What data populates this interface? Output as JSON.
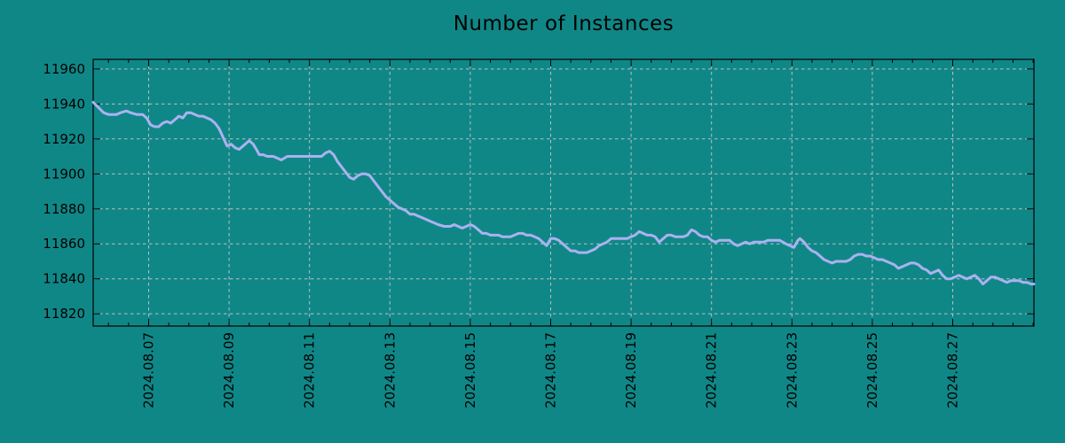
{
  "page": {
    "background_color": "#108787"
  },
  "chart_data": {
    "type": "line",
    "title": "Number of Instances",
    "xlabel": "",
    "ylabel": "",
    "legend": "none",
    "grid": true,
    "x_axis": {
      "tick_days": [
        7,
        9,
        11,
        13,
        15,
        17,
        19,
        21,
        23,
        25,
        27
      ],
      "tick_labels": [
        "2024.08.07",
        "2024.08.09",
        "2024.08.11",
        "2024.08.13",
        "2024.08.15",
        "2024.08.17",
        "2024.08.19",
        "2024.08.21",
        "2024.08.23",
        "2024.08.25",
        "2024.08.27"
      ],
      "minor_tick_step_days": 0.5,
      "xlim_days": [
        5.62,
        29.02
      ]
    },
    "y_axis": {
      "ticks": [
        11820,
        11840,
        11860,
        11880,
        11900,
        11920,
        11940,
        11960
      ],
      "ylim": [
        11813,
        11965.5
      ]
    },
    "colors": {
      "background": "#108787",
      "line": "#aab2f0",
      "grid": "#b8c2c0",
      "axis": "#000000",
      "text": "#000000"
    },
    "series": [
      {
        "name": "instances",
        "points": [
          [
            5.62,
            11941
          ],
          [
            5.75,
            11938
          ],
          [
            5.88,
            11935
          ],
          [
            6.0,
            11934
          ],
          [
            6.1,
            11934
          ],
          [
            6.2,
            11934
          ],
          [
            6.3,
            11935
          ],
          [
            6.45,
            11936
          ],
          [
            6.55,
            11935
          ],
          [
            6.7,
            11934
          ],
          [
            6.85,
            11934
          ],
          [
            6.95,
            11932
          ],
          [
            7.05,
            11928
          ],
          [
            7.15,
            11927
          ],
          [
            7.25,
            11927
          ],
          [
            7.35,
            11929
          ],
          [
            7.45,
            11930
          ],
          [
            7.55,
            11929
          ],
          [
            7.65,
            11931
          ],
          [
            7.75,
            11933
          ],
          [
            7.85,
            11932
          ],
          [
            7.95,
            11935
          ],
          [
            8.05,
            11935
          ],
          [
            8.15,
            11934
          ],
          [
            8.25,
            11933
          ],
          [
            8.35,
            11933
          ],
          [
            8.45,
            11932
          ],
          [
            8.55,
            11931
          ],
          [
            8.65,
            11929
          ],
          [
            8.75,
            11926
          ],
          [
            8.85,
            11921
          ],
          [
            8.95,
            11916
          ],
          [
            9.05,
            11917
          ],
          [
            9.15,
            11915
          ],
          [
            9.25,
            11914
          ],
          [
            9.35,
            11916
          ],
          [
            9.45,
            11918
          ],
          [
            9.5,
            11919
          ],
          [
            9.6,
            11917
          ],
          [
            9.68,
            11914
          ],
          [
            9.75,
            11911
          ],
          [
            9.85,
            11911
          ],
          [
            9.95,
            11910
          ],
          [
            10.1,
            11910
          ],
          [
            10.2,
            11909
          ],
          [
            10.3,
            11908
          ],
          [
            10.45,
            11910
          ],
          [
            10.55,
            11910
          ],
          [
            10.7,
            11910
          ],
          [
            10.85,
            11910
          ],
          [
            11.0,
            11910
          ],
          [
            11.1,
            11910
          ],
          [
            11.2,
            11910
          ],
          [
            11.3,
            11910
          ],
          [
            11.4,
            11912
          ],
          [
            11.5,
            11913
          ],
          [
            11.6,
            11911
          ],
          [
            11.7,
            11907
          ],
          [
            11.8,
            11904
          ],
          [
            11.9,
            11901
          ],
          [
            12.0,
            11898
          ],
          [
            12.1,
            11897
          ],
          [
            12.2,
            11899
          ],
          [
            12.3,
            11900
          ],
          [
            12.4,
            11900
          ],
          [
            12.5,
            11899
          ],
          [
            12.6,
            11896
          ],
          [
            12.7,
            11893
          ],
          [
            12.8,
            11890
          ],
          [
            12.9,
            11887
          ],
          [
            13.0,
            11885
          ],
          [
            13.1,
            11883
          ],
          [
            13.2,
            11881
          ],
          [
            13.3,
            11880
          ],
          [
            13.4,
            11879
          ],
          [
            13.5,
            11877
          ],
          [
            13.6,
            11877
          ],
          [
            13.7,
            11876
          ],
          [
            13.8,
            11875
          ],
          [
            13.9,
            11874
          ],
          [
            14.0,
            11873
          ],
          [
            14.1,
            11872
          ],
          [
            14.2,
            11871
          ],
          [
            14.35,
            11870
          ],
          [
            14.5,
            11870
          ],
          [
            14.6,
            11871
          ],
          [
            14.7,
            11870
          ],
          [
            14.8,
            11869
          ],
          [
            14.9,
            11870
          ],
          [
            15.0,
            11871
          ],
          [
            15.1,
            11870
          ],
          [
            15.2,
            11868
          ],
          [
            15.3,
            11866
          ],
          [
            15.4,
            11866
          ],
          [
            15.5,
            11865
          ],
          [
            15.6,
            11865
          ],
          [
            15.7,
            11865
          ],
          [
            15.8,
            11864
          ],
          [
            15.9,
            11864
          ],
          [
            16.0,
            11864
          ],
          [
            16.1,
            11865
          ],
          [
            16.2,
            11866
          ],
          [
            16.3,
            11866
          ],
          [
            16.4,
            11865
          ],
          [
            16.5,
            11865
          ],
          [
            16.6,
            11864
          ],
          [
            16.7,
            11863
          ],
          [
            16.8,
            11861
          ],
          [
            16.9,
            11859
          ],
          [
            17.0,
            11863
          ],
          [
            17.1,
            11863
          ],
          [
            17.2,
            11862
          ],
          [
            17.3,
            11860
          ],
          [
            17.4,
            11858
          ],
          [
            17.5,
            11856
          ],
          [
            17.6,
            11856
          ],
          [
            17.7,
            11855
          ],
          [
            17.8,
            11855
          ],
          [
            17.9,
            11855
          ],
          [
            18.0,
            11856
          ],
          [
            18.1,
            11857
          ],
          [
            18.2,
            11859
          ],
          [
            18.3,
            11860
          ],
          [
            18.4,
            11861
          ],
          [
            18.5,
            11863
          ],
          [
            18.6,
            11863
          ],
          [
            18.7,
            11863
          ],
          [
            18.8,
            11863
          ],
          [
            18.9,
            11863
          ],
          [
            19.0,
            11864
          ],
          [
            19.1,
            11865
          ],
          [
            19.2,
            11867
          ],
          [
            19.3,
            11866
          ],
          [
            19.4,
            11865
          ],
          [
            19.5,
            11865
          ],
          [
            19.6,
            11864
          ],
          [
            19.7,
            11861
          ],
          [
            19.8,
            11863
          ],
          [
            19.9,
            11865
          ],
          [
            20.0,
            11865
          ],
          [
            20.1,
            11864
          ],
          [
            20.2,
            11864
          ],
          [
            20.3,
            11864
          ],
          [
            20.4,
            11865
          ],
          [
            20.5,
            11868
          ],
          [
            20.6,
            11867
          ],
          [
            20.7,
            11865
          ],
          [
            20.8,
            11864
          ],
          [
            20.9,
            11864
          ],
          [
            21.0,
            11862
          ],
          [
            21.1,
            11861
          ],
          [
            21.2,
            11862
          ],
          [
            21.3,
            11862
          ],
          [
            21.45,
            11862
          ],
          [
            21.55,
            11860
          ],
          [
            21.65,
            11859
          ],
          [
            21.75,
            11860
          ],
          [
            21.85,
            11861
          ],
          [
            21.95,
            11860
          ],
          [
            22.05,
            11861
          ],
          [
            22.15,
            11861
          ],
          [
            22.3,
            11861
          ],
          [
            22.4,
            11862
          ],
          [
            22.5,
            11862
          ],
          [
            22.6,
            11862
          ],
          [
            22.7,
            11862
          ],
          [
            22.85,
            11860
          ],
          [
            22.95,
            11859
          ],
          [
            23.05,
            11858
          ],
          [
            23.15,
            11862
          ],
          [
            23.2,
            11863
          ],
          [
            23.3,
            11861
          ],
          [
            23.4,
            11858
          ],
          [
            23.5,
            11856
          ],
          [
            23.6,
            11855
          ],
          [
            23.7,
            11853
          ],
          [
            23.8,
            11851
          ],
          [
            23.9,
            11850
          ],
          [
            24.0,
            11849
          ],
          [
            24.1,
            11850
          ],
          [
            24.2,
            11850
          ],
          [
            24.35,
            11850
          ],
          [
            24.45,
            11851
          ],
          [
            24.55,
            11853
          ],
          [
            24.65,
            11854
          ],
          [
            24.75,
            11854
          ],
          [
            24.85,
            11853
          ],
          [
            24.95,
            11853
          ],
          [
            25.05,
            11852
          ],
          [
            25.15,
            11851
          ],
          [
            25.25,
            11851
          ],
          [
            25.35,
            11850
          ],
          [
            25.45,
            11849
          ],
          [
            25.55,
            11848
          ],
          [
            25.65,
            11846
          ],
          [
            25.75,
            11847
          ],
          [
            25.85,
            11848
          ],
          [
            25.95,
            11849
          ],
          [
            26.05,
            11849
          ],
          [
            26.15,
            11848
          ],
          [
            26.25,
            11846
          ],
          [
            26.35,
            11845
          ],
          [
            26.45,
            11843
          ],
          [
            26.55,
            11844
          ],
          [
            26.65,
            11845
          ],
          [
            26.75,
            11842
          ],
          [
            26.85,
            11840
          ],
          [
            26.95,
            11840
          ],
          [
            27.05,
            11841
          ],
          [
            27.15,
            11842
          ],
          [
            27.25,
            11841
          ],
          [
            27.35,
            11840
          ],
          [
            27.45,
            11841
          ],
          [
            27.55,
            11842
          ],
          [
            27.65,
            11840
          ],
          [
            27.75,
            11837
          ],
          [
            27.85,
            11839
          ],
          [
            27.95,
            11841
          ],
          [
            28.05,
            11841
          ],
          [
            28.15,
            11840
          ],
          [
            28.25,
            11839
          ],
          [
            28.35,
            11838
          ],
          [
            28.45,
            11839
          ],
          [
            28.55,
            11839
          ],
          [
            28.65,
            11839
          ],
          [
            28.75,
            11838
          ],
          [
            28.85,
            11838
          ],
          [
            28.95,
            11837
          ],
          [
            29.02,
            11837
          ]
        ]
      }
    ]
  }
}
